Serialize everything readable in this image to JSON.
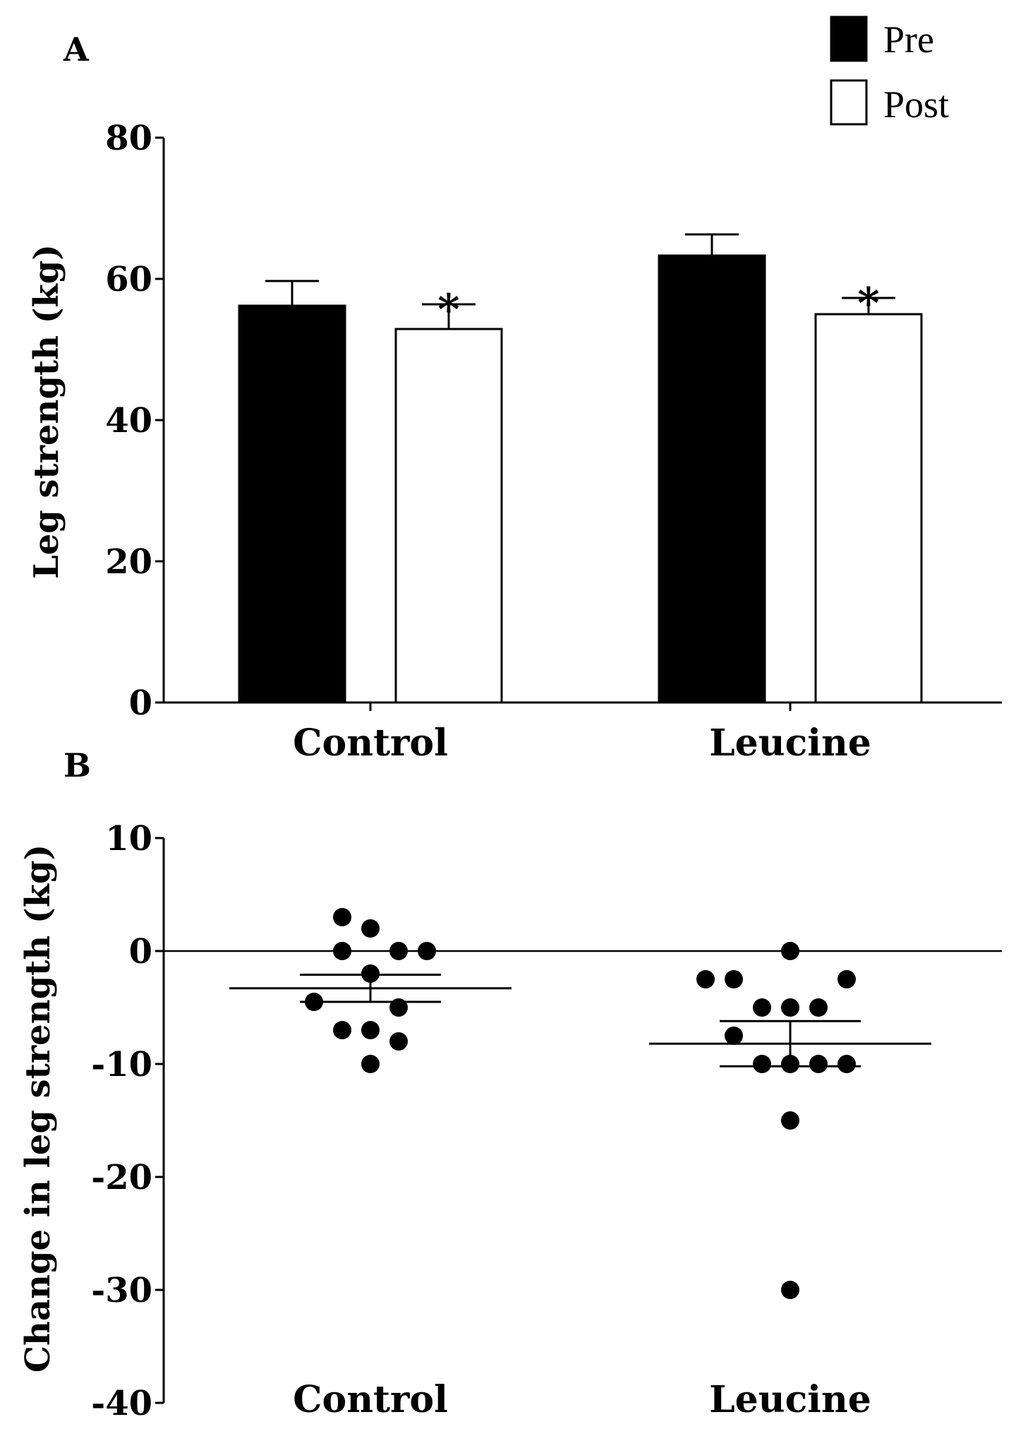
{
  "chart_data": [
    {
      "panel_label": "A",
      "type": "bar",
      "ylabel": "Leg strength (kg)",
      "ylim": [
        0,
        80
      ],
      "yticks": [
        0,
        20,
        40,
        60,
        80
      ],
      "categories": [
        "Control",
        "Leucine"
      ],
      "legend": {
        "placement": "top-right",
        "entries": [
          "Pre",
          "Post"
        ]
      },
      "series": [
        {
          "name": "Pre",
          "color": "#000000",
          "values": [
            56.2,
            63.3
          ],
          "error": [
            3.5,
            3.0
          ]
        },
        {
          "name": "Post",
          "color": "#ffffff",
          "values": [
            52.9,
            55.0
          ],
          "error": [
            3.5,
            2.3
          ]
        }
      ],
      "annotations": [
        {
          "text": "*",
          "category": "Control",
          "series": "Post"
        },
        {
          "text": "*",
          "category": "Leucine",
          "series": "Post"
        }
      ]
    },
    {
      "panel_label": "B",
      "type": "scatter",
      "ylabel": "Change in leg strength (kg)",
      "ylim": [
        -40,
        10
      ],
      "yticks": [
        10,
        0,
        -10,
        -20,
        -30,
        -40
      ],
      "reference_line": 0,
      "categories": [
        "Control",
        "Leucine"
      ],
      "groups": [
        {
          "name": "Control",
          "mean": -3.3,
          "sem": 1.2,
          "points": [
            {
              "y": 3,
              "jitter": -1
            },
            {
              "y": 2,
              "jitter": 0
            },
            {
              "y": 0,
              "jitter": -1
            },
            {
              "y": 0,
              "jitter": 1
            },
            {
              "y": 0,
              "jitter": 2
            },
            {
              "y": -2,
              "jitter": 0
            },
            {
              "y": -4.5,
              "jitter": -2
            },
            {
              "y": -5,
              "jitter": 1
            },
            {
              "y": -7,
              "jitter": -1
            },
            {
              "y": -7,
              "jitter": 0
            },
            {
              "y": -8,
              "jitter": 1
            },
            {
              "y": -10,
              "jitter": 0
            }
          ]
        },
        {
          "name": "Leucine",
          "mean": -8.2,
          "sem": 2.0,
          "points": [
            {
              "y": 0,
              "jitter": 0
            },
            {
              "y": -2.5,
              "jitter": -3
            },
            {
              "y": -2.5,
              "jitter": -2
            },
            {
              "y": -2.5,
              "jitter": 2
            },
            {
              "y": -5,
              "jitter": -1
            },
            {
              "y": -5,
              "jitter": 0
            },
            {
              "y": -5,
              "jitter": 1
            },
            {
              "y": -7.5,
              "jitter": -2
            },
            {
              "y": -10,
              "jitter": -1
            },
            {
              "y": -10,
              "jitter": 0
            },
            {
              "y": -10,
              "jitter": 1
            },
            {
              "y": -10,
              "jitter": 2
            },
            {
              "y": -15,
              "jitter": 0
            },
            {
              "y": -30,
              "jitter": 0
            }
          ]
        }
      ]
    }
  ]
}
